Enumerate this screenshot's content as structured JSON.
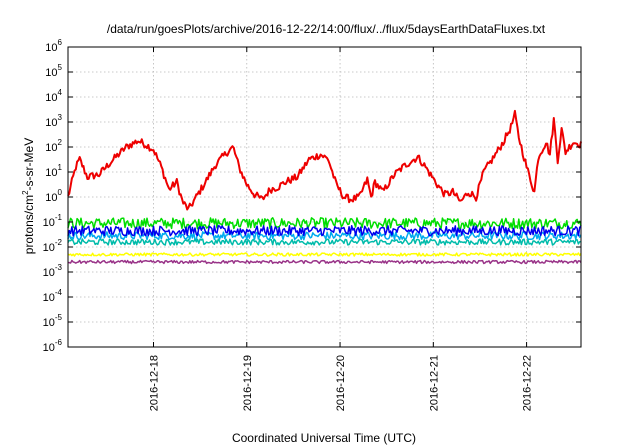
{
  "chart_data": {
    "type": "line",
    "title": "/data/run/goesPlots/archive/2016-12-22/14:00/flux/../flux/5daysEarthDataFluxes.txt",
    "xlabel": "Coordinated Universal Time (UTC)",
    "ylabel": "protons/cm²-s-sr-MeV",
    "ylabel_parts": {
      "pre": "protons/cm",
      "sup": "2",
      "post": "-s-sr-MeV"
    },
    "y_scale": "log",
    "ylim_exp": [
      -6,
      6
    ],
    "y_ticks": [
      {
        "base": "10",
        "exp": "-6"
      },
      {
        "base": "10",
        "exp": "-5"
      },
      {
        "base": "10",
        "exp": "-4"
      },
      {
        "base": "10",
        "exp": "-3"
      },
      {
        "base": "10",
        "exp": "-2"
      },
      {
        "base": "10",
        "exp": "-1"
      },
      {
        "base": "10",
        "exp": "0"
      },
      {
        "base": "10",
        "exp": "1"
      },
      {
        "base": "10",
        "exp": "2"
      },
      {
        "base": "10",
        "exp": "3"
      },
      {
        "base": "10",
        "exp": "4"
      },
      {
        "base": "10",
        "exp": "5"
      },
      {
        "base": "10",
        "exp": "6"
      }
    ],
    "x_start": "2016-12-17T02:00",
    "x_end": "2016-12-22T14:00",
    "x_ticks": [
      {
        "label": "2016-12-18",
        "t": "2016-12-18T00:00"
      },
      {
        "label": "2016-12-19",
        "t": "2016-12-19T00:00"
      },
      {
        "label": "2016-12-20",
        "t": "2016-12-20T00:00"
      },
      {
        "label": "2016-12-21",
        "t": "2016-12-21T00:00"
      },
      {
        "label": "2016-12-22",
        "t": "2016-12-22T00:00"
      }
    ],
    "grid": true,
    "series": [
      {
        "color": "#ee0000",
        "noise": 0.15,
        "points": [
          [
            "2016-12-17T02:00",
            0.0
          ],
          [
            "2016-12-17T04:00",
            1.2
          ],
          [
            "2016-12-17T05:00",
            1.5
          ],
          [
            "2016-12-17T07:00",
            0.8
          ],
          [
            "2016-12-17T10:00",
            0.9
          ],
          [
            "2016-12-17T13:00",
            1.4
          ],
          [
            "2016-12-17T17:00",
            2.0
          ],
          [
            "2016-12-17T20:00",
            2.25
          ],
          [
            "2016-12-17T22:00",
            2.1
          ],
          [
            "2016-12-18T00:00",
            1.9
          ],
          [
            "2016-12-18T02:00",
            1.2
          ],
          [
            "2016-12-18T04:00",
            0.3
          ],
          [
            "2016-12-18T06:00",
            0.6
          ],
          [
            "2016-12-18T07:30",
            -0.2
          ],
          [
            "2016-12-18T09:00",
            -0.5
          ],
          [
            "2016-12-18T11:00",
            0.0
          ],
          [
            "2016-12-18T13:00",
            0.5
          ],
          [
            "2016-12-18T16:00",
            1.3
          ],
          [
            "2016-12-18T19:00",
            1.8
          ],
          [
            "2016-12-18T20:30",
            2.0
          ],
          [
            "2016-12-18T22:00",
            1.2
          ],
          [
            "2016-12-19T00:00",
            0.5
          ],
          [
            "2016-12-19T02:00",
            0.1
          ],
          [
            "2016-12-19T04:00",
            -0.1
          ],
          [
            "2016-12-19T06:00",
            0.3
          ],
          [
            "2016-12-19T08:00",
            0.4
          ],
          [
            "2016-12-19T10:00",
            0.6
          ],
          [
            "2016-12-19T13:00",
            0.8
          ],
          [
            "2016-12-19T16:00",
            1.5
          ],
          [
            "2016-12-19T19:00",
            1.7
          ],
          [
            "2016-12-19T21:00",
            1.5
          ],
          [
            "2016-12-19T23:00",
            0.5
          ],
          [
            "2016-12-20T01:00",
            0.0
          ],
          [
            "2016-12-20T03:00",
            -0.1
          ],
          [
            "2016-12-20T05:00",
            0.0
          ],
          [
            "2016-12-20T07:00",
            0.7
          ],
          [
            "2016-12-20T08:00",
            0.0
          ],
          [
            "2016-12-20T09:00",
            0.6
          ],
          [
            "2016-12-20T11:00",
            0.2
          ],
          [
            "2016-12-20T14:00",
            0.9
          ],
          [
            "2016-12-20T17:00",
            1.3
          ],
          [
            "2016-12-20T20:00",
            1.6
          ],
          [
            "2016-12-20T22:00",
            1.2
          ],
          [
            "2016-12-21T01:00",
            0.5
          ],
          [
            "2016-12-21T03:00",
            0.1
          ],
          [
            "2016-12-21T05:00",
            0.2
          ],
          [
            "2016-12-21T07:00",
            -0.2
          ],
          [
            "2016-12-21T09:00",
            0.2
          ],
          [
            "2016-12-21T11:00",
            0.0
          ],
          [
            "2016-12-21T13:00",
            1.0
          ],
          [
            "2016-12-21T16:00",
            1.7
          ],
          [
            "2016-12-21T18:00",
            2.2
          ],
          [
            "2016-12-21T20:00",
            2.8
          ],
          [
            "2016-12-21T21:00",
            3.3
          ],
          [
            "2016-12-21T22:00",
            2.4
          ],
          [
            "2016-12-22T00:00",
            1.2
          ],
          [
            "2016-12-22T02:00",
            0.2
          ],
          [
            "2016-12-22T03:00",
            1.6
          ],
          [
            "2016-12-22T05:00",
            2.2
          ],
          [
            "2016-12-22T06:00",
            1.7
          ],
          [
            "2016-12-22T07:00",
            3.1
          ],
          [
            "2016-12-22T08:00",
            1.5
          ],
          [
            "2016-12-22T09:00",
            2.7
          ],
          [
            "2016-12-22T10:00",
            1.8
          ],
          [
            "2016-12-22T12:00",
            2.2
          ],
          [
            "2016-12-22T14:00",
            2.1
          ]
        ]
      },
      {
        "color": "#00dd00",
        "noise": 0.22,
        "points": [
          [
            "2016-12-17T02:00",
            -1.05
          ],
          [
            "2016-12-22T14:00",
            -1.05
          ]
        ]
      },
      {
        "color": "#00aaee",
        "noise": 0.16,
        "points": [
          [
            "2016-12-17T02:00",
            -1.55
          ],
          [
            "2016-12-22T14:00",
            -1.55
          ]
        ]
      },
      {
        "color": "#0000ee",
        "noise": 0.2,
        "points": [
          [
            "2016-12-17T02:00",
            -1.35
          ],
          [
            "2016-12-22T14:00",
            -1.35
          ]
        ]
      },
      {
        "color": "#00bbaa",
        "noise": 0.12,
        "points": [
          [
            "2016-12-17T02:00",
            -1.8
          ],
          [
            "2016-12-22T14:00",
            -1.8
          ]
        ]
      },
      {
        "color": "#ffff00",
        "noise": 0.06,
        "points": [
          [
            "2016-12-17T02:00",
            -2.3
          ],
          [
            "2016-12-22T14:00",
            -2.3
          ]
        ]
      },
      {
        "color": "#993388",
        "noise": 0.06,
        "points": [
          [
            "2016-12-17T02:00",
            -2.6
          ],
          [
            "2016-12-22T14:00",
            -2.6
          ]
        ]
      }
    ]
  }
}
